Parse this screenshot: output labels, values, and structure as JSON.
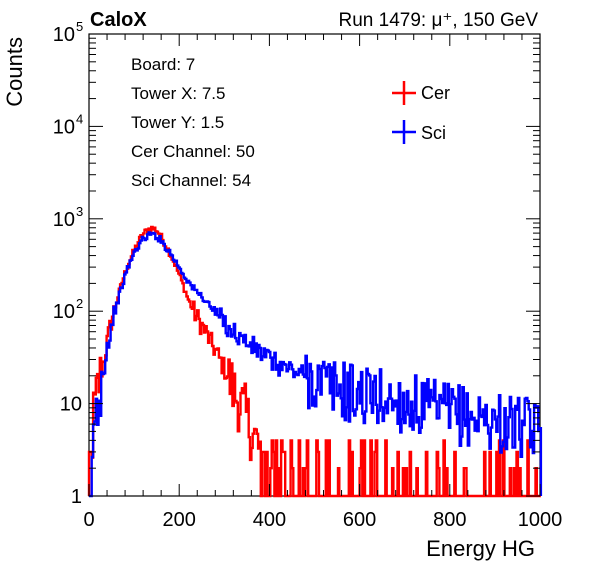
{
  "header": {
    "experiment": "CaloX",
    "run_info": "Run 1479:   μ⁺, 150 GeV"
  },
  "info_box": [
    "Board: 7",
    "Tower X: 7.5",
    "Tower Y: 1.5",
    "Cer Channel: 50",
    "Sci Channel: 54"
  ],
  "chart_data": {
    "type": "line",
    "style": "step-histogram",
    "xlabel": "Energy HG",
    "ylabel": "Counts",
    "xlim": [
      0,
      1000
    ],
    "ylim": [
      1,
      100000
    ],
    "y_scale": "log",
    "x_ticks": [
      0,
      200,
      400,
      600,
      800,
      1000
    ],
    "x_tick_labels": [
      "0",
      "200",
      "400",
      "600",
      "800",
      "1000"
    ],
    "y_ticks": [
      1,
      10,
      100,
      1000,
      10000,
      100000
    ],
    "y_tick_labels": [
      {
        "base": "1",
        "exp": ""
      },
      {
        "base": "10",
        "exp": ""
      },
      {
        "base": "10",
        "exp": "2"
      },
      {
        "base": "10",
        "exp": "3"
      },
      {
        "base": "10",
        "exp": "4"
      },
      {
        "base": "10",
        "exp": "5"
      }
    ],
    "grid": false,
    "legend_position": "top-right",
    "series": [
      {
        "name": "Cer",
        "color": "#ff0000",
        "points": [
          [
            0,
            1
          ],
          [
            10,
            7
          ],
          [
            20,
            15
          ],
          [
            30,
            25
          ],
          [
            40,
            45
          ],
          [
            50,
            80
          ],
          [
            60,
            120
          ],
          [
            70,
            180
          ],
          [
            80,
            260
          ],
          [
            90,
            350
          ],
          [
            100,
            450
          ],
          [
            110,
            570
          ],
          [
            120,
            680
          ],
          [
            130,
            760
          ],
          [
            140,
            790
          ],
          [
            150,
            760
          ],
          [
            160,
            640
          ],
          [
            170,
            520
          ],
          [
            180,
            420
          ],
          [
            190,
            330
          ],
          [
            200,
            250
          ],
          [
            210,
            185
          ],
          [
            220,
            135
          ],
          [
            230,
            105
          ],
          [
            240,
            85
          ],
          [
            250,
            70
          ],
          [
            260,
            58
          ],
          [
            270,
            46
          ],
          [
            280,
            38
          ],
          [
            290,
            30
          ],
          [
            300,
            24
          ],
          [
            310,
            19
          ],
          [
            320,
            14
          ],
          [
            330,
            11
          ],
          [
            340,
            9
          ],
          [
            350,
            7
          ],
          [
            360,
            5
          ],
          [
            370,
            4
          ],
          [
            380,
            3
          ],
          [
            390,
            2.5
          ],
          [
            400,
            2
          ],
          [
            410,
            2
          ],
          [
            420,
            1.6
          ],
          [
            430,
            1.5
          ],
          [
            440,
            1.3
          ],
          [
            450,
            1.2
          ],
          [
            460,
            1.1
          ],
          [
            470,
            1
          ],
          [
            500,
            1.1
          ],
          [
            550,
            1
          ],
          [
            600,
            1
          ],
          [
            700,
            1
          ],
          [
            800,
            1
          ],
          [
            900,
            1
          ],
          [
            1000,
            1
          ]
        ]
      },
      {
        "name": "Sci",
        "color": "#0000ff",
        "points": [
          [
            0,
            1
          ],
          [
            10,
            5
          ],
          [
            20,
            10
          ],
          [
            30,
            20
          ],
          [
            40,
            40
          ],
          [
            50,
            70
          ],
          [
            60,
            110
          ],
          [
            70,
            165
          ],
          [
            80,
            240
          ],
          [
            90,
            330
          ],
          [
            100,
            420
          ],
          [
            110,
            520
          ],
          [
            120,
            600
          ],
          [
            130,
            660
          ],
          [
            140,
            680
          ],
          [
            150,
            650
          ],
          [
            160,
            580
          ],
          [
            170,
            500
          ],
          [
            180,
            430
          ],
          [
            190,
            360
          ],
          [
            200,
            300
          ],
          [
            210,
            250
          ],
          [
            220,
            210
          ],
          [
            230,
            180
          ],
          [
            240,
            160
          ],
          [
            250,
            145
          ],
          [
            260,
            128
          ],
          [
            270,
            112
          ],
          [
            280,
            98
          ],
          [
            290,
            86
          ],
          [
            300,
            75
          ],
          [
            320,
            60
          ],
          [
            340,
            50
          ],
          [
            360,
            42
          ],
          [
            380,
            36
          ],
          [
            400,
            30
          ],
          [
            420,
            26
          ],
          [
            440,
            24
          ],
          [
            460,
            22
          ],
          [
            480,
            20
          ],
          [
            500,
            18
          ],
          [
            520,
            16.5
          ],
          [
            540,
            15
          ],
          [
            560,
            14
          ],
          [
            580,
            13
          ],
          [
            600,
            12.5
          ],
          [
            620,
            12
          ],
          [
            640,
            11.5
          ],
          [
            660,
            11
          ],
          [
            680,
            10.5
          ],
          [
            700,
            10
          ],
          [
            720,
            9.5
          ],
          [
            740,
            9
          ],
          [
            760,
            8.5
          ],
          [
            780,
            8.2
          ],
          [
            800,
            8
          ],
          [
            820,
            7.6
          ],
          [
            840,
            7.2
          ],
          [
            860,
            7
          ],
          [
            880,
            6.6
          ],
          [
            900,
            6.4
          ],
          [
            920,
            6
          ],
          [
            940,
            5.8
          ],
          [
            960,
            5.5
          ],
          [
            980,
            5.2
          ],
          [
            1000,
            5
          ]
        ]
      }
    ]
  }
}
